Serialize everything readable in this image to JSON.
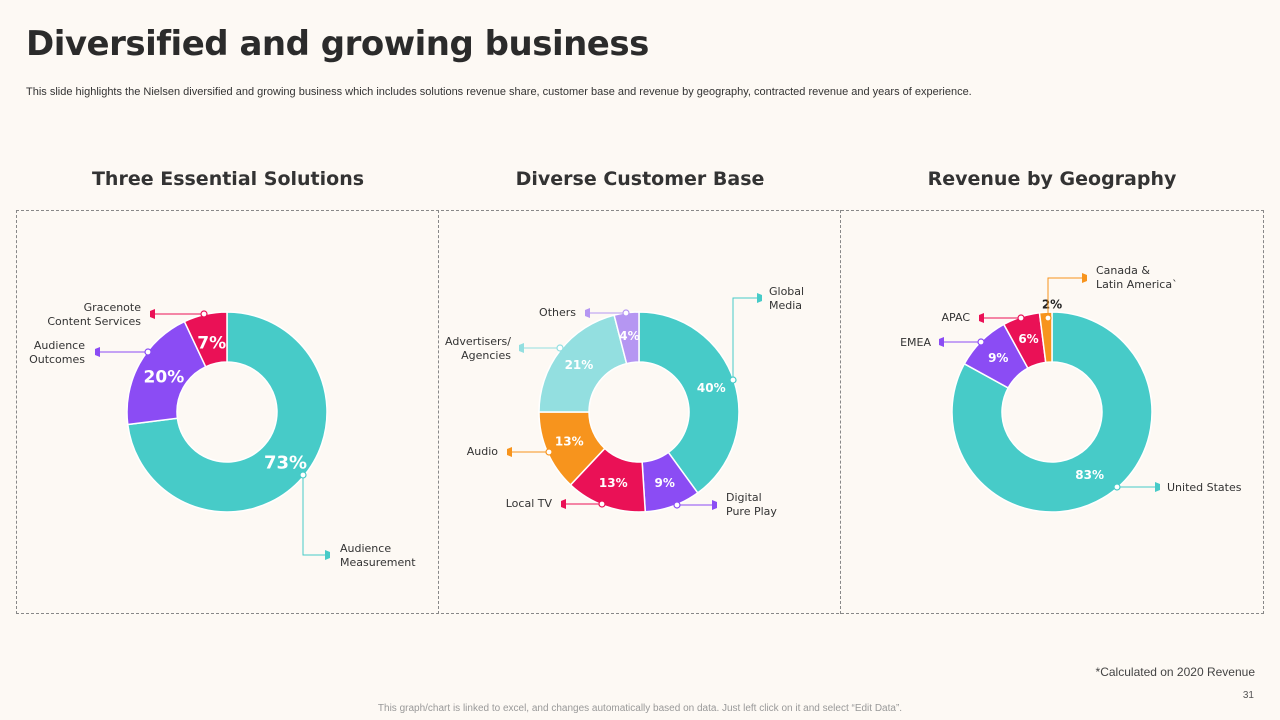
{
  "title": "Diversified and growing business",
  "subtitle": "This slide highlights the Nielsen diversified and growing business which includes solutions revenue share, customer base and revenue by geography, contracted revenue and years of experience.",
  "footnote": "*Calculated on 2020 Revenue",
  "page_number": "31",
  "bottom_note": "This graph/chart is linked to excel,  and changes automatically based on data. Just left click on it and select “Edit Data”.",
  "colors": {
    "teal": "#47cbc8",
    "purple": "#8b4cf4",
    "red": "#ea1156",
    "lightteal": "#93dfe0",
    "orange": "#f7941d",
    "lavender": "#b596f2"
  },
  "chart_data": [
    {
      "type": "pie",
      "title": "Three Essential Solutions",
      "slices": [
        {
          "label": "Audience Measurement",
          "value": 73,
          "display": "73%",
          "color": "#47cbc8"
        },
        {
          "label": "Audience Outcomes",
          "value": 20,
          "display": "20%",
          "color": "#8b4cf4"
        },
        {
          "label": "Gracenote Content Services",
          "value": 7,
          "display": "7%",
          "color": "#ea1156"
        }
      ]
    },
    {
      "type": "pie",
      "title": "Diverse Customer Base",
      "slices": [
        {
          "label": "Global Media",
          "value": 40,
          "display": "40%",
          "color": "#47cbc8"
        },
        {
          "label": "Digital Pure Play",
          "value": 9,
          "display": "9%",
          "color": "#8b4cf4"
        },
        {
          "label": "Local TV",
          "value": 13,
          "display": "13%",
          "color": "#ea1156"
        },
        {
          "label": "Audio",
          "value": 13,
          "display": "13%",
          "color": "#f7941d"
        },
        {
          "label": "Advertisers/ Agencies",
          "value": 21,
          "display": "21%",
          "color": "#93dfe0"
        },
        {
          "label": "Others",
          "value": 4,
          "display": "4%",
          "color": "#b596f2"
        }
      ]
    },
    {
      "type": "pie",
      "title": "Revenue by Geography",
      "slices": [
        {
          "label": "United States",
          "value": 83,
          "display": "83%",
          "color": "#47cbc8"
        },
        {
          "label": "EMEA",
          "value": 9,
          "display": "9%",
          "color": "#8b4cf4"
        },
        {
          "label": "APAC",
          "value": 6,
          "display": "6%",
          "color": "#ea1156"
        },
        {
          "label": "Canada & Latin America`",
          "value": 2,
          "display": "2%",
          "color": "#f7941d"
        }
      ]
    }
  ]
}
